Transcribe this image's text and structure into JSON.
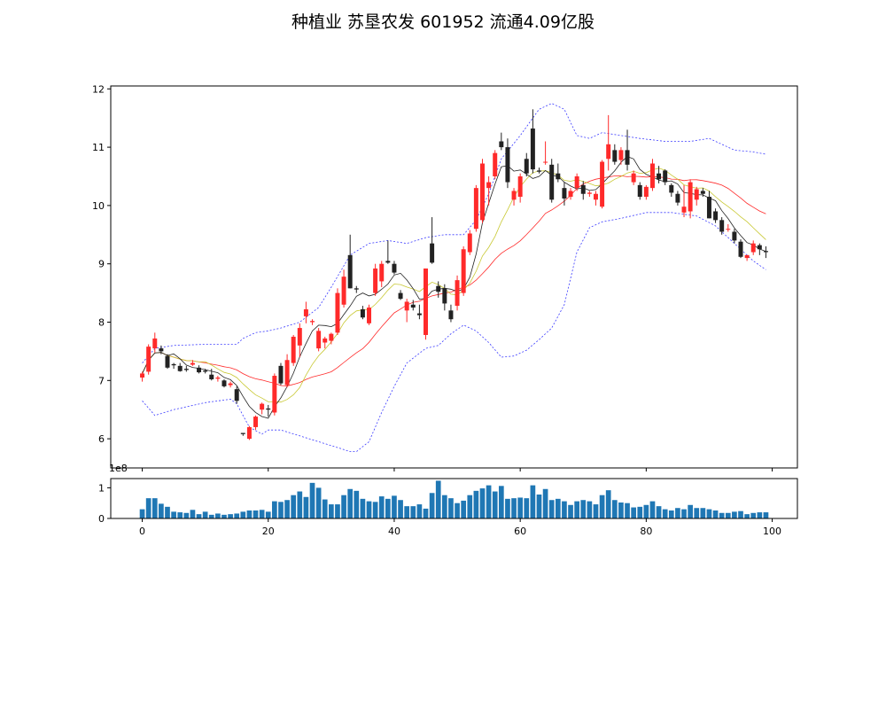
{
  "title": "种植业 苏垦农发 601952 流通4.09亿股",
  "chart_data": [
    {
      "type": "candlestick",
      "xlim": [
        -5,
        104
      ],
      "ylim": [
        5.5,
        12.05
      ],
      "yticks": [
        6,
        7,
        8,
        9,
        10,
        11,
        12
      ],
      "xticks": [
        0,
        20,
        40,
        60,
        80,
        100
      ],
      "up_color": "#ff2a2a",
      "down_color": "#222222",
      "series_colors": {
        "ma5": "#222222",
        "ma10": "#c8c832",
        "ma20": "#ff2a2a",
        "bands": "#3b3bff"
      },
      "ohlc": [
        [
          7.05,
          7.15,
          6.98,
          7.12
        ],
        [
          7.15,
          7.62,
          7.1,
          7.58
        ],
        [
          7.55,
          7.82,
          7.48,
          7.72
        ],
        [
          7.55,
          7.6,
          7.45,
          7.5
        ],
        [
          7.42,
          7.45,
          7.2,
          7.22
        ],
        [
          7.28,
          7.3,
          7.2,
          7.26
        ],
        [
          7.25,
          7.3,
          7.15,
          7.16
        ],
        [
          7.2,
          7.25,
          7.15,
          7.18
        ],
        [
          7.27,
          7.35,
          7.25,
          7.3
        ],
        [
          7.22,
          7.26,
          7.12,
          7.14
        ],
        [
          7.17,
          7.2,
          7.12,
          7.15
        ],
        [
          7.1,
          7.2,
          7.0,
          7.02
        ],
        [
          7.03,
          7.08,
          6.98,
          7.05
        ],
        [
          7.0,
          7.02,
          6.88,
          6.9
        ],
        [
          6.92,
          6.98,
          6.88,
          6.95
        ],
        [
          6.85,
          6.9,
          6.6,
          6.65
        ],
        [
          6.1,
          6.1,
          6.05,
          6.08
        ],
        [
          6.0,
          6.22,
          5.98,
          6.2
        ],
        [
          6.2,
          6.4,
          6.15,
          6.38
        ],
        [
          6.5,
          6.62,
          6.42,
          6.6
        ],
        [
          6.52,
          6.58,
          6.38,
          6.5
        ],
        [
          6.45,
          7.12,
          6.4,
          7.08
        ],
        [
          7.25,
          7.3,
          6.92,
          6.95
        ],
        [
          6.92,
          7.45,
          6.88,
          7.35
        ],
        [
          7.3,
          7.78,
          7.25,
          7.75
        ],
        [
          7.6,
          7.98,
          7.4,
          7.9
        ],
        [
          8.1,
          8.35,
          7.98,
          8.22
        ],
        [
          8.0,
          8.05,
          7.95,
          8.02
        ],
        [
          7.55,
          7.9,
          7.5,
          7.85
        ],
        [
          7.65,
          7.75,
          7.55,
          7.72
        ],
        [
          7.68,
          7.82,
          7.62,
          7.8
        ],
        [
          7.82,
          8.58,
          7.78,
          8.5
        ],
        [
          8.3,
          8.9,
          8.25,
          8.78
        ],
        [
          9.15,
          9.5,
          8.58,
          8.58
        ],
        [
          8.58,
          8.62,
          8.5,
          8.56
        ],
        [
          8.22,
          8.28,
          8.05,
          8.08
        ],
        [
          7.98,
          8.3,
          7.95,
          8.25
        ],
        [
          8.5,
          9.0,
          8.45,
          8.92
        ],
        [
          8.7,
          9.05,
          8.6,
          9.0
        ],
        [
          9.05,
          9.4,
          9.0,
          9.02
        ],
        [
          9.0,
          9.05,
          8.82,
          8.85
        ],
        [
          8.5,
          8.55,
          8.38,
          8.4
        ],
        [
          8.2,
          8.4,
          8.0,
          8.35
        ],
        [
          8.3,
          8.38,
          8.2,
          8.25
        ],
        [
          8.15,
          8.3,
          8.05,
          8.12
        ],
        [
          7.78,
          8.92,
          7.7,
          8.92
        ],
        [
          9.35,
          9.8,
          9.0,
          9.02
        ],
        [
          8.62,
          8.7,
          8.42,
          8.52
        ],
        [
          8.58,
          8.65,
          8.2,
          8.32
        ],
        [
          8.2,
          8.3,
          8.0,
          8.05
        ],
        [
          8.28,
          8.8,
          8.2,
          8.72
        ],
        [
          8.5,
          9.3,
          8.45,
          9.25
        ],
        [
          9.2,
          9.58,
          9.15,
          9.52
        ],
        [
          9.6,
          10.35,
          9.55,
          10.3
        ],
        [
          9.75,
          10.8,
          9.7,
          10.72
        ],
        [
          10.3,
          10.5,
          10.0,
          10.4
        ],
        [
          10.5,
          10.95,
          10.45,
          10.9
        ],
        [
          11.1,
          11.25,
          10.95,
          11.0
        ],
        [
          11.0,
          11.15,
          10.3,
          10.4
        ],
        [
          10.1,
          10.3,
          10.0,
          10.25
        ],
        [
          10.15,
          10.55,
          10.05,
          10.5
        ],
        [
          10.8,
          10.9,
          10.5,
          10.55
        ],
        [
          11.32,
          11.65,
          10.55,
          10.62
        ],
        [
          10.6,
          10.65,
          10.55,
          10.58
        ],
        [
          10.75,
          11.1,
          10.7,
          10.75
        ],
        [
          10.7,
          10.8,
          10.05,
          10.1
        ],
        [
          10.55,
          10.72,
          10.4,
          10.45
        ],
        [
          10.3,
          10.4,
          10.0,
          10.12
        ],
        [
          10.15,
          10.3,
          10.1,
          10.25
        ],
        [
          10.3,
          10.55,
          10.25,
          10.5
        ],
        [
          10.35,
          10.42,
          10.1,
          10.2
        ],
        [
          10.2,
          10.25,
          10.15,
          10.22
        ],
        [
          10.1,
          10.25,
          10.0,
          10.2
        ],
        [
          9.98,
          10.78,
          9.95,
          10.75
        ],
        [
          10.8,
          11.55,
          10.6,
          11.05
        ],
        [
          10.95,
          11.05,
          10.7,
          10.75
        ],
        [
          10.78,
          11.0,
          10.7,
          10.95
        ],
        [
          10.95,
          11.3,
          10.6,
          10.7
        ],
        [
          10.4,
          10.6,
          10.35,
          10.55
        ],
        [
          10.35,
          10.4,
          10.1,
          10.15
        ],
        [
          10.15,
          10.35,
          10.1,
          10.32
        ],
        [
          10.3,
          10.8,
          10.25,
          10.72
        ],
        [
          10.55,
          10.68,
          10.38,
          10.45
        ],
        [
          10.6,
          10.62,
          10.35,
          10.4
        ],
        [
          10.35,
          10.38,
          10.15,
          10.22
        ],
        [
          10.2,
          10.25,
          10.0,
          10.05
        ],
        [
          9.88,
          10.35,
          9.8,
          9.98
        ],
        [
          9.9,
          10.45,
          9.78,
          10.4
        ],
        [
          10.1,
          10.32,
          10.0,
          10.28
        ],
        [
          10.25,
          10.3,
          10.15,
          10.2
        ],
        [
          10.15,
          10.25,
          9.78,
          9.78
        ],
        [
          9.9,
          9.95,
          9.7,
          9.75
        ],
        [
          9.75,
          9.8,
          9.5,
          9.55
        ],
        [
          9.6,
          9.68,
          9.55,
          9.6
        ],
        [
          9.55,
          9.6,
          9.35,
          9.4
        ],
        [
          9.38,
          9.42,
          9.1,
          9.12
        ],
        [
          9.1,
          9.15,
          9.05,
          9.15
        ],
        [
          9.2,
          9.4,
          9.15,
          9.35
        ],
        [
          9.32,
          9.35,
          9.15,
          9.25
        ],
        [
          9.22,
          9.3,
          9.1,
          9.2
        ]
      ],
      "bands_upper": [
        [
          0,
          7.3
        ],
        [
          2,
          7.55
        ],
        [
          5,
          7.6
        ],
        [
          10,
          7.62
        ],
        [
          15,
          7.62
        ],
        [
          16,
          7.72
        ],
        [
          18,
          7.82
        ],
        [
          20,
          7.85
        ],
        [
          22,
          7.9
        ],
        [
          25,
          8.0
        ],
        [
          28,
          8.25
        ],
        [
          30,
          8.6
        ],
        [
          33,
          9.15
        ],
        [
          36,
          9.35
        ],
        [
          39,
          9.4
        ],
        [
          42,
          9.35
        ],
        [
          45,
          9.45
        ],
        [
          48,
          9.5
        ],
        [
          51,
          9.5
        ],
        [
          53,
          9.75
        ],
        [
          55,
          10.2
        ],
        [
          57,
          10.8
        ],
        [
          60,
          11.2
        ],
        [
          63,
          11.65
        ],
        [
          65,
          11.75
        ],
        [
          67,
          11.65
        ],
        [
          69,
          11.2
        ],
        [
          71,
          11.15
        ],
        [
          73,
          11.25
        ],
        [
          76,
          11.2
        ],
        [
          79,
          11.15
        ],
        [
          83,
          11.1
        ],
        [
          87,
          11.1
        ],
        [
          90,
          11.15
        ],
        [
          92,
          11.05
        ],
        [
          94,
          10.95
        ],
        [
          97,
          10.92
        ],
        [
          99,
          10.88
        ]
      ],
      "bands_lower": [
        [
          0,
          6.65
        ],
        [
          2,
          6.4
        ],
        [
          5,
          6.5
        ],
        [
          10,
          6.62
        ],
        [
          14,
          6.68
        ],
        [
          15,
          6.6
        ],
        [
          17,
          6.2
        ],
        [
          19,
          6.08
        ],
        [
          20,
          6.15
        ],
        [
          22,
          6.15
        ],
        [
          25,
          6.05
        ],
        [
          28,
          5.95
        ],
        [
          31,
          5.85
        ],
        [
          33,
          5.78
        ],
        [
          34,
          5.78
        ],
        [
          36,
          5.95
        ],
        [
          38,
          6.45
        ],
        [
          40,
          6.9
        ],
        [
          42,
          7.3
        ],
        [
          45,
          7.55
        ],
        [
          47,
          7.6
        ],
        [
          49,
          7.8
        ],
        [
          51,
          7.95
        ],
        [
          53,
          7.85
        ],
        [
          55,
          7.65
        ],
        [
          57,
          7.4
        ],
        [
          59,
          7.42
        ],
        [
          61,
          7.52
        ],
        [
          63,
          7.7
        ],
        [
          65,
          7.9
        ],
        [
          67,
          8.3
        ],
        [
          69,
          9.2
        ],
        [
          71,
          9.62
        ],
        [
          73,
          9.72
        ],
        [
          76,
          9.78
        ],
        [
          80,
          9.88
        ],
        [
          84,
          9.88
        ],
        [
          88,
          9.82
        ],
        [
          91,
          9.65
        ],
        [
          93,
          9.45
        ],
        [
          95,
          9.25
        ],
        [
          97,
          9.05
        ],
        [
          99,
          8.9
        ]
      ],
      "volume_ylim": [
        0,
        130000000
      ],
      "volume_yticks": [
        0,
        1,
        2
      ],
      "volume_ytick_labels": [
        "0",
        "1",
        ""
      ],
      "volume_offset_label": "1e8",
      "volume_color": "#1f77b4",
      "volume": [
        30,
        66,
        66,
        48,
        38,
        22,
        20,
        18,
        28,
        14,
        22,
        12,
        16,
        12,
        14,
        16,
        22,
        26,
        26,
        28,
        22,
        56,
        54,
        60,
        76,
        88,
        70,
        116,
        100,
        62,
        46,
        46,
        76,
        96,
        90,
        64,
        56,
        54,
        72,
        64,
        74,
        60,
        40,
        40,
        46,
        32,
        83,
        123,
        76,
        66,
        50,
        58,
        76,
        90,
        98,
        108,
        88,
        106,
        64,
        66,
        68,
        66,
        108,
        78,
        96,
        60,
        64,
        56,
        44,
        56,
        60,
        56,
        46,
        76,
        92,
        60,
        52,
        50,
        36,
        38,
        44,
        56,
        40,
        30,
        26,
        34,
        30,
        44,
        34,
        34,
        30,
        26,
        18,
        18,
        22,
        24,
        14,
        18,
        20,
        20
      ]
    }
  ]
}
